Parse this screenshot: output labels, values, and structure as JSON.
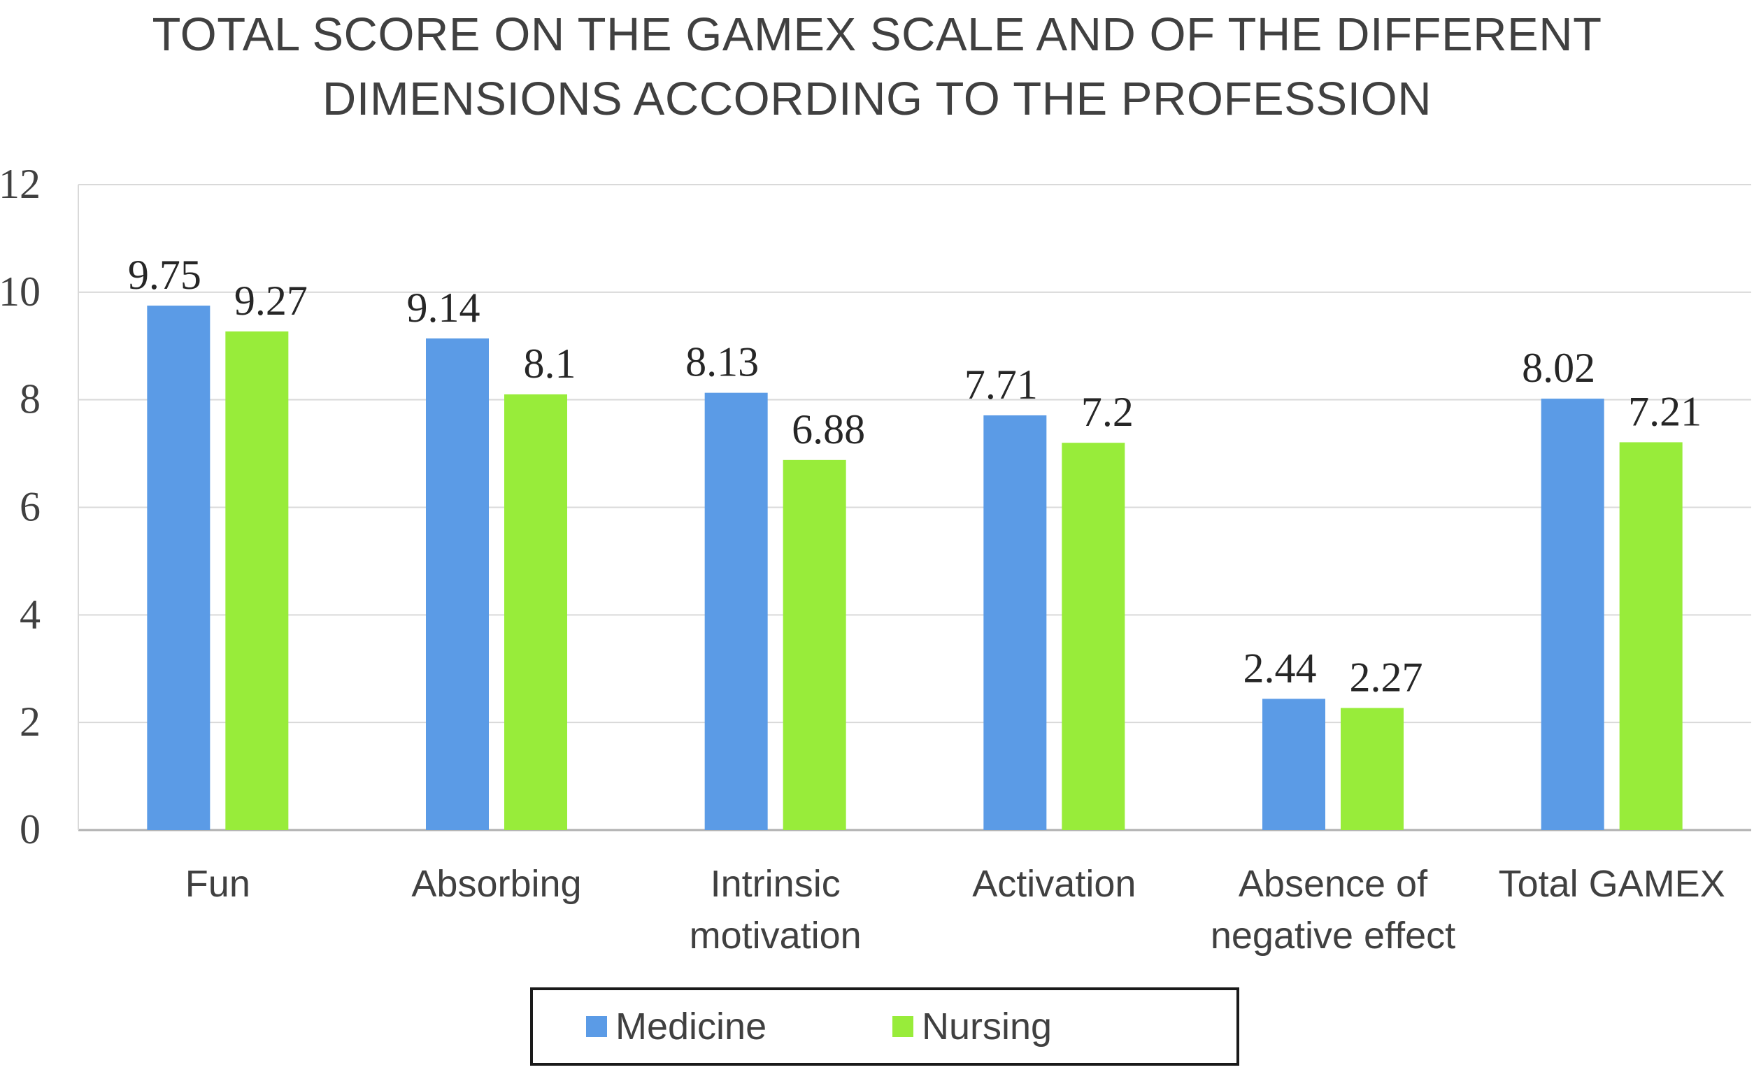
{
  "chart_data": {
    "type": "bar",
    "title_lines": [
      "TOTAL SCORE ON THE GAMEX SCALE AND OF THE DIFFERENT",
      "DIMENSIONS ACCORDING TO THE PROFESSION"
    ],
    "categories": [
      [
        "Fun"
      ],
      [
        "Absorbing"
      ],
      [
        "Intrinsic",
        "motivation"
      ],
      [
        "Activation"
      ],
      [
        "Absence of",
        "negative effect"
      ],
      [
        "Total GAMEX"
      ]
    ],
    "series": [
      {
        "name": "Medicine",
        "color": "#5b9be6",
        "values": [
          9.75,
          9.14,
          8.13,
          7.71,
          2.44,
          8.02
        ]
      },
      {
        "name": "Nursing",
        "color": "#98ec3a",
        "values": [
          9.27,
          8.1,
          6.88,
          7.2,
          2.27,
          7.21
        ]
      }
    ],
    "ylim": [
      0,
      12
    ],
    "yticks": [
      "0",
      "2",
      "4",
      "6",
      "8",
      "10",
      "12"
    ],
    "grid": true,
    "legend_position": "bottom",
    "data_labels": [
      [
        "9.75",
        "9.14",
        "8.13",
        "7.71",
        "2.44",
        "8.02"
      ],
      [
        "9.27",
        "8.1",
        "6.88",
        "7.2",
        "2.27",
        "7.21"
      ]
    ]
  }
}
